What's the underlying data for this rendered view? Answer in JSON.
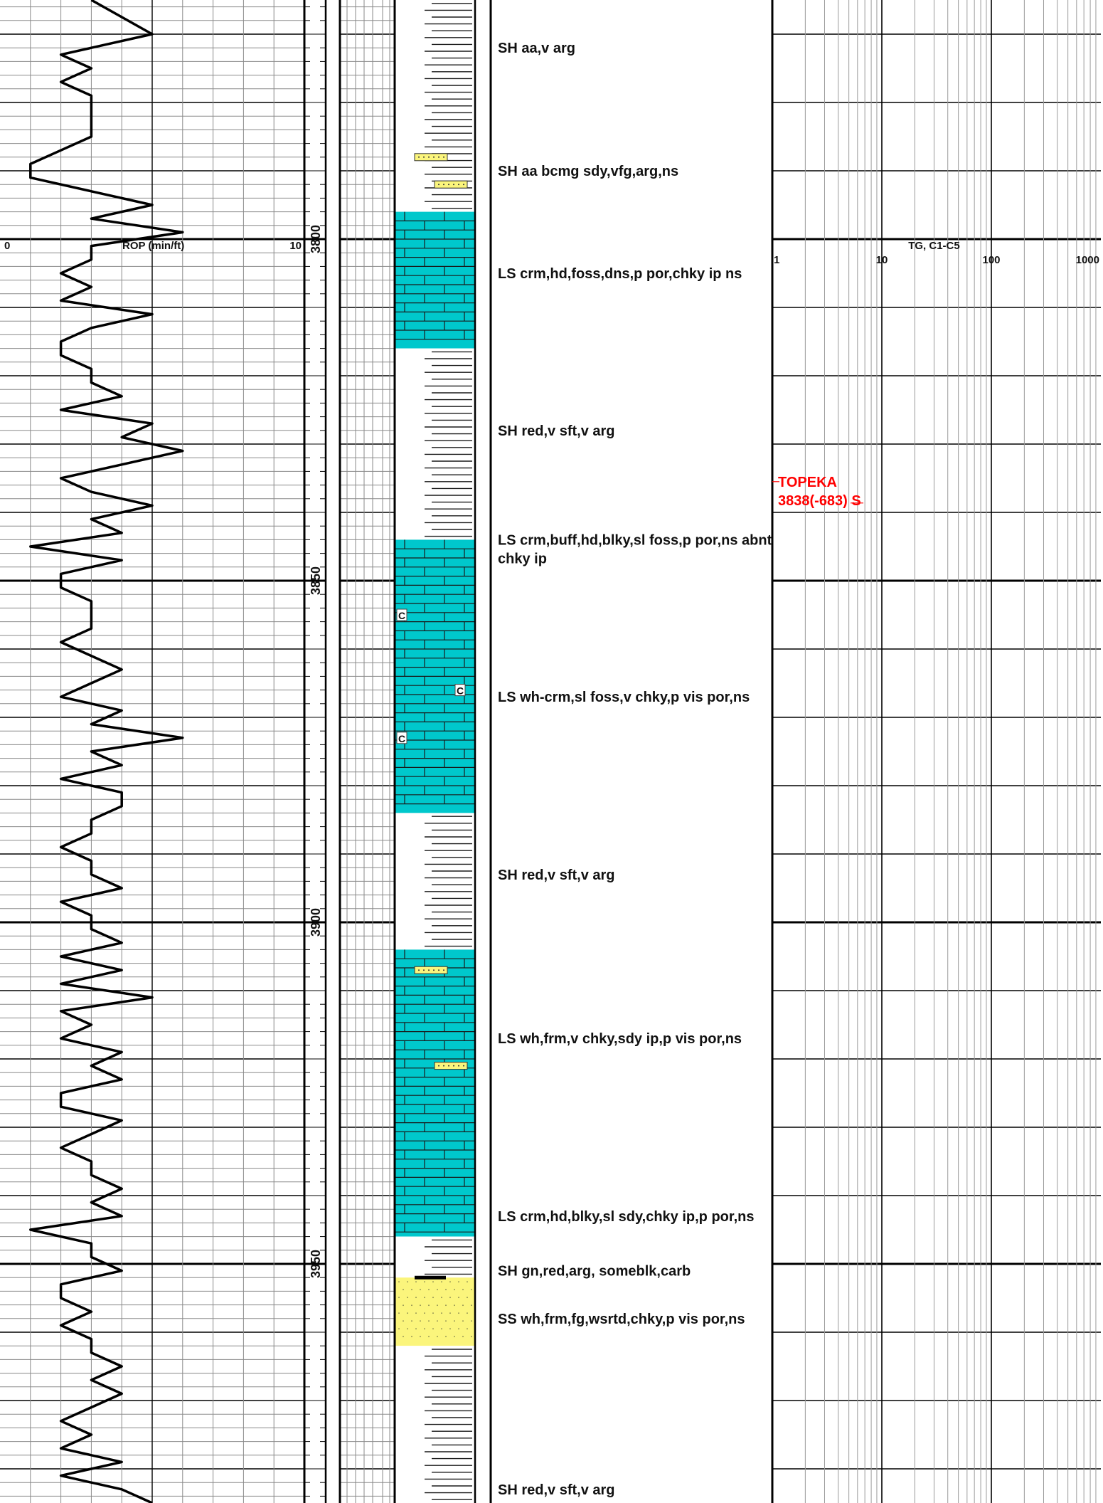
{
  "colors": {
    "limestone": "#00c8cc",
    "sandstone": "#fbf57c",
    "formation_top": "#ff0000",
    "curve": "#000000"
  },
  "chart_data": {
    "type": "line",
    "depth_range": [
      3765,
      3985
    ],
    "depth_labels": [
      "3800",
      "3850",
      "3900",
      "3950"
    ],
    "rop_track": {
      "label": "ROP (min/ft)",
      "scale_min": "0",
      "scale_max": "10",
      "xlim": [
        0,
        10
      ],
      "depth": [
        3765,
        3770,
        3773,
        3775,
        3777,
        3779,
        3781,
        3783,
        3785,
        3787,
        3789,
        3791,
        3793,
        3795,
        3797,
        3799,
        3801,
        3803,
        3805,
        3807,
        3809,
        3811,
        3813,
        3815,
        3817,
        3819,
        3821,
        3823,
        3825,
        3827,
        3829,
        3831,
        3833,
        3835,
        3837,
        3839,
        3841,
        3843,
        3845,
        3847,
        3849,
        3851,
        3853,
        3855,
        3857,
        3859,
        3861,
        3863,
        3865,
        3867,
        3869,
        3871,
        3873,
        3875,
        3877,
        3879,
        3881,
        3883,
        3885,
        3887,
        3889,
        3891,
        3893,
        3895,
        3897,
        3899,
        3901,
        3903,
        3905,
        3907,
        3909,
        3911,
        3913,
        3915,
        3917,
        3919,
        3921,
        3923,
        3925,
        3927,
        3929,
        3931,
        3933,
        3935,
        3937,
        3939,
        3941,
        3943,
        3945,
        3947,
        3949,
        3951,
        3953,
        3955,
        3957,
        3959,
        3961,
        3963,
        3965,
        3967,
        3969,
        3971,
        3973,
        3975,
        3977,
        3979,
        3981,
        3983,
        3985
      ],
      "values": [
        3.0,
        5.0,
        2.0,
        3.0,
        2.0,
        3.0,
        3.0,
        3.0,
        3.0,
        2.0,
        1.0,
        1.0,
        3.0,
        5.0,
        3.0,
        6.0,
        3.0,
        3.0,
        2.0,
        3.0,
        2.0,
        5.0,
        3.0,
        2.0,
        2.0,
        3.0,
        3.0,
        4.0,
        2.0,
        5.0,
        4.0,
        6.0,
        4.0,
        2.0,
        3.0,
        5.0,
        3.0,
        4.0,
        1.0,
        4.0,
        2.0,
        2.0,
        3.0,
        3.0,
        3.0,
        2.0,
        3.0,
        4.0,
        3.0,
        2.0,
        4.0,
        3.0,
        6.0,
        3.0,
        4.0,
        2.0,
        4.0,
        4.0,
        3.0,
        3.0,
        2.0,
        3.0,
        3.0,
        4.0,
        2.0,
        3.0,
        3.0,
        4.0,
        2.0,
        4.0,
        2.0,
        5.0,
        2.0,
        3.0,
        2.0,
        4.0,
        3.0,
        4.0,
        2.0,
        2.0,
        4.0,
        3.0,
        2.0,
        3.0,
        3.0,
        4.0,
        3.0,
        4.0,
        1.0,
        3.0,
        3.0,
        4.0,
        2.0,
        2.0,
        3.0,
        2.0,
        3.0,
        3.0,
        4.0,
        3.0,
        4.0,
        3.0,
        2.0,
        3.0,
        2.0,
        4.0,
        2.0,
        4.0,
        5.0
      ]
    },
    "gas_track": {
      "label": "TG, C1-C5",
      "scale": "log",
      "ticks": [
        "1",
        "10",
        "100",
        "1000"
      ]
    },
    "lithology": [
      {
        "top": 3765,
        "base": 3796,
        "type": "shale"
      },
      {
        "top": 3796,
        "base": 3816,
        "type": "limestone"
      },
      {
        "top": 3816,
        "base": 3844,
        "type": "shale"
      },
      {
        "top": 3844,
        "base": 3884,
        "type": "limestone"
      },
      {
        "top": 3884,
        "base": 3904,
        "type": "shale"
      },
      {
        "top": 3904,
        "base": 3946,
        "type": "limestone"
      },
      {
        "top": 3946,
        "base": 3952,
        "type": "shale"
      },
      {
        "top": 3952,
        "base": 3962,
        "type": "sandstone"
      },
      {
        "top": 3962,
        "base": 3985,
        "type": "shale"
      }
    ],
    "accessories": [
      {
        "depth": 3788,
        "side": "left",
        "type": "sand-lens"
      },
      {
        "depth": 3792,
        "side": "right",
        "type": "sand-lens"
      },
      {
        "depth": 3907,
        "side": "left",
        "type": "sand-lens"
      },
      {
        "depth": 3921,
        "side": "right",
        "type": "sand-lens"
      },
      {
        "depth": 3952,
        "side": "center",
        "type": "carbonaceous-streak"
      },
      {
        "depth": 3855,
        "side": "left",
        "type": "chert",
        "text": "C"
      },
      {
        "depth": 3866,
        "side": "right",
        "type": "chert",
        "text": "C"
      },
      {
        "depth": 3873,
        "side": "left",
        "type": "chert",
        "text": "C"
      }
    ],
    "descriptions": [
      {
        "depth": 3772,
        "lines": [
          "SH aa,v arg"
        ]
      },
      {
        "depth": 3790,
        "lines": [
          "SH aa bcmg sdy,vfg,arg,ns"
        ]
      },
      {
        "depth": 3805,
        "lines": [
          "LS crm,hd,foss,dns,p por,chky ip ns"
        ]
      },
      {
        "depth": 3828,
        "lines": [
          "SH red,v sft,v arg"
        ]
      },
      {
        "depth": 3844,
        "lines": [
          "LS crm,buff,hd,blky,sl foss,p por,ns abnt",
          "chky ip"
        ]
      },
      {
        "depth": 3867,
        "lines": [
          "LS wh-crm,sl foss,v chky,p vis por,ns"
        ]
      },
      {
        "depth": 3893,
        "lines": [
          "SH red,v sft,v arg"
        ]
      },
      {
        "depth": 3917,
        "lines": [
          "LS wh,frm,v chky,sdy ip,p vis por,ns"
        ]
      },
      {
        "depth": 3943,
        "lines": [
          "LS crm,hd,blky,sl sdy,chky ip,p por,ns"
        ]
      },
      {
        "depth": 3951,
        "lines": [
          "SH gn,red,arg, someblk,carb"
        ]
      },
      {
        "depth": 3958,
        "lines": [
          "SS wh,frm,fg,wsrtd,chky,p vis por,ns"
        ]
      },
      {
        "depth": 3983,
        "lines": [
          "SH red,v sft,v arg"
        ]
      }
    ],
    "formation_tops": [
      {
        "depth": 3838,
        "lines": [
          "TOPEKA",
          "3838(-683) S"
        ]
      }
    ]
  }
}
